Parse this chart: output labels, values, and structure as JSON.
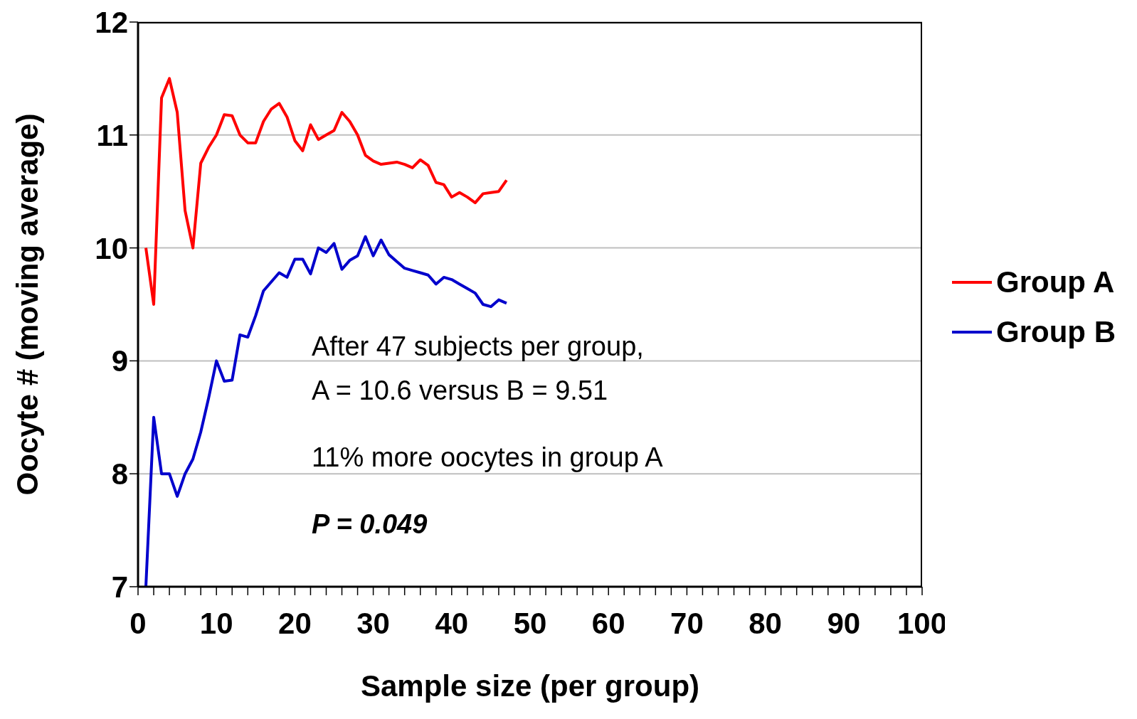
{
  "chart_data": {
    "type": "line",
    "xlabel": "Sample size (per group)",
    "ylabel": "Oocyte # (moving average)",
    "x": [
      1,
      2,
      3,
      4,
      5,
      6,
      7,
      8,
      9,
      10,
      11,
      12,
      13,
      14,
      15,
      16,
      17,
      18,
      19,
      20,
      21,
      22,
      23,
      24,
      25,
      26,
      27,
      28,
      29,
      30,
      31,
      32,
      33,
      34,
      35,
      36,
      37,
      38,
      39,
      40,
      41,
      42,
      43,
      44,
      45,
      46,
      47
    ],
    "series": [
      {
        "name": "Group A",
        "color": "#ff0000",
        "values": [
          10.0,
          9.5,
          11.33,
          11.5,
          11.2,
          10.33,
          10.0,
          10.75,
          10.89,
          11.0,
          11.18,
          11.17,
          11.0,
          10.93,
          10.93,
          11.12,
          11.23,
          11.28,
          11.16,
          10.95,
          10.86,
          11.09,
          10.96,
          11.0,
          11.04,
          11.2,
          11.12,
          11.0,
          10.82,
          10.77,
          10.74,
          10.75,
          10.76,
          10.74,
          10.71,
          10.78,
          10.73,
          10.58,
          10.56,
          10.45,
          10.49,
          10.45,
          10.4,
          10.48,
          10.49,
          10.5,
          10.6
        ]
      },
      {
        "name": "Group B",
        "color": "#0000cc",
        "values": [
          7.0,
          8.5,
          8.0,
          8.0,
          7.8,
          8.0,
          8.13,
          8.37,
          8.67,
          9.0,
          8.82,
          8.83,
          9.23,
          9.21,
          9.4,
          9.62,
          9.7,
          9.78,
          9.74,
          9.9,
          9.9,
          9.77,
          10.0,
          9.96,
          10.04,
          9.81,
          9.89,
          9.93,
          10.1,
          9.93,
          10.07,
          9.94,
          9.88,
          9.82,
          9.8,
          9.78,
          9.76,
          9.68,
          9.74,
          9.72,
          9.68,
          9.64,
          9.6,
          9.5,
          9.48,
          9.54,
          9.51
        ]
      }
    ],
    "xlim": [
      0,
      100
    ],
    "xticks": [
      0,
      {
        "value": 2,
        "label": null
      },
      {
        "value": 4,
        "label": null
      },
      {
        "value": 6,
        "label": null
      },
      {
        "value": 8,
        "label": null
      },
      10,
      {
        "value": 12,
        "label": null
      },
      {
        "value": 14,
        "label": null
      },
      {
        "value": 16,
        "label": null
      },
      {
        "value": 18,
        "label": null
      },
      20,
      {
        "value": 22,
        "label": null
      },
      {
        "value": 24,
        "label": null
      },
      {
        "value": 26,
        "label": null
      },
      {
        "value": 28,
        "label": null
      },
      30,
      {
        "value": 32,
        "label": null
      },
      {
        "value": 34,
        "label": null
      },
      {
        "value": 36,
        "label": null
      },
      {
        "value": 38,
        "label": null
      },
      40,
      {
        "value": 42,
        "label": null
      },
      {
        "value": 44,
        "label": null
      },
      {
        "value": 46,
        "label": null
      },
      {
        "value": 48,
        "label": null
      },
      50,
      {
        "value": 52,
        "label": null
      },
      {
        "value": 54,
        "label": null
      },
      {
        "value": 56,
        "label": null
      },
      {
        "value": 58,
        "label": null
      },
      60,
      {
        "value": 62,
        "label": null
      },
      {
        "value": 64,
        "label": null
      },
      {
        "value": 66,
        "label": null
      },
      {
        "value": 68,
        "label": null
      },
      70,
      {
        "value": 72,
        "label": null
      },
      {
        "value": 74,
        "label": null
      },
      {
        "value": 76,
        "label": null
      },
      {
        "value": 78,
        "label": null
      },
      80,
      {
        "value": 82,
        "label": null
      },
      {
        "value": 84,
        "label": null
      },
      {
        "value": 86,
        "label": null
      },
      {
        "value": 88,
        "label": null
      },
      90,
      {
        "value": 92,
        "label": null
      },
      {
        "value": 94,
        "label": null
      },
      {
        "value": 96,
        "label": null
      },
      {
        "value": 98,
        "label": null
      },
      100
    ],
    "ylim": [
      7,
      12
    ],
    "yticks": [
      7,
      8,
      9,
      10,
      11,
      12
    ],
    "grid": "y",
    "legend": "right",
    "marker": "none",
    "line_style": "solid",
    "annotations": [
      "After 47 subjects per group,",
      "A = 10.6 versus B = 9.51",
      "11% more oocytes in group A",
      "P = 0.049"
    ]
  }
}
